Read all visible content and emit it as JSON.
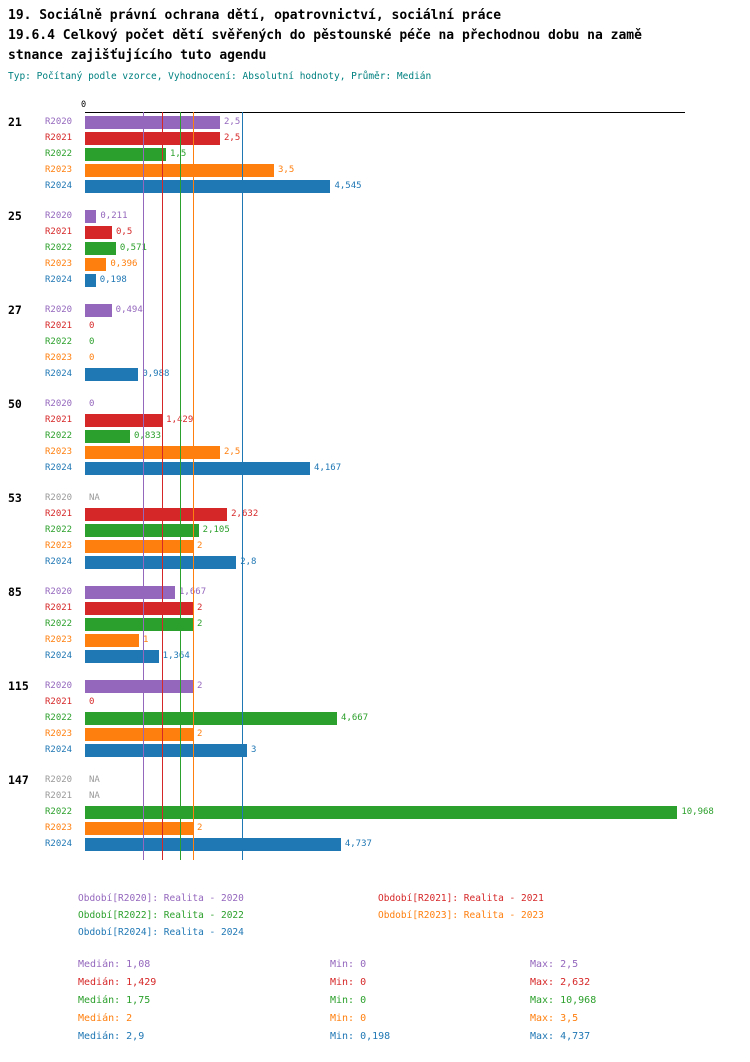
{
  "header": {
    "line1": "19. Sociálně právní ochrana dětí, opatrovnictví, sociální práce",
    "line2": "19.6.4 Celkový počet dětí svěřených do pěstounské péče na přechodnou dobu na zamě",
    "line3": "stnance zajišťujícího tuto agendu",
    "subtitle": "Typ: Počítaný podle vzorce, Vyhodnocení: Absolutní hodnoty, Průměr: Medián"
  },
  "chart_data": {
    "type": "bar",
    "orientation": "horizontal",
    "title": "19.6.4 Celkový počet dětí svěřených do pěstounské péče na přechodnou dobu na zaměstnance zajišťujícího tuto agendu",
    "axis": {
      "zero_label": "0",
      "xlim": [
        0,
        11.11
      ],
      "gridlines": "median-lines-per-series"
    },
    "na_color": "#999999",
    "na_display": "NA",
    "series": [
      {
        "id": "R2020",
        "name": "Realita - 2020",
        "color": "#9467bd",
        "median": 1.08
      },
      {
        "id": "R2021",
        "name": "Realita - 2021",
        "color": "#d62728",
        "median": 1.429
      },
      {
        "id": "R2022",
        "name": "Realita - 2022",
        "color": "#2ca02c",
        "median": 1.75
      },
      {
        "id": "R2023",
        "name": "Realita - 2023",
        "color": "#ff7f0e",
        "median": 2.0
      },
      {
        "id": "R2024",
        "name": "Realita - 2024",
        "color": "#1f77b4",
        "median": 2.9
      }
    ],
    "groups": [
      {
        "label": "21",
        "values": [
          2.5,
          2.5,
          1.5,
          3.5,
          4.545
        ],
        "displays": [
          "2,5",
          "2,5",
          "1,5",
          "3,5",
          "4,545"
        ]
      },
      {
        "label": "25",
        "values": [
          0.211,
          0.5,
          0.571,
          0.396,
          0.198
        ],
        "displays": [
          "0,211",
          "0,5",
          "0,571",
          "0,396",
          "0,198"
        ]
      },
      {
        "label": "27",
        "values": [
          0.494,
          0,
          0,
          0,
          0.988
        ],
        "displays": [
          "0,494",
          "0",
          "0",
          "0",
          "0,988"
        ]
      },
      {
        "label": "50",
        "values": [
          0,
          1.429,
          0.833,
          2.5,
          4.167
        ],
        "displays": [
          "0",
          "1,429",
          "0,833",
          "2,5",
          "4,167"
        ]
      },
      {
        "label": "53",
        "values": [
          null,
          2.632,
          2.105,
          2,
          2.8
        ],
        "displays": [
          "NA",
          "2,632",
          "2,105",
          "2",
          "2,8"
        ]
      },
      {
        "label": "85",
        "values": [
          1.667,
          2,
          2,
          1,
          1.364
        ],
        "displays": [
          "1,667",
          "2",
          "2",
          "1",
          "1,364"
        ]
      },
      {
        "label": "115",
        "values": [
          2,
          0,
          4.667,
          2,
          3
        ],
        "displays": [
          "2",
          "0",
          "4,667",
          "2",
          "3"
        ]
      },
      {
        "label": "147",
        "values": [
          null,
          null,
          10.968,
          2,
          4.737
        ],
        "displays": [
          "NA",
          "NA",
          "10,968",
          "2",
          "4,737"
        ]
      }
    ]
  },
  "legend": {
    "items": [
      {
        "key": "Období[R2020]",
        "value": "Realita - 2020"
      },
      {
        "key": "Období[R2021]",
        "value": "Realita - 2021"
      },
      {
        "key": "Období[R2022]",
        "value": "Realita - 2022"
      },
      {
        "key": "Období[R2023]",
        "value": "Realita - 2023"
      },
      {
        "key": "Období[R2024]",
        "value": "Realita - 2024"
      }
    ]
  },
  "stats": {
    "rows": [
      {
        "median": "Medián: 1,08",
        "min": "Min: 0",
        "max": "Max: 2,5"
      },
      {
        "median": "Medián: 1,429",
        "min": "Min: 0",
        "max": "Max: 2,632"
      },
      {
        "median": "Medián: 1,75",
        "min": "Min: 0",
        "max": "Max: 10,968"
      },
      {
        "median": "Medián: 2",
        "min": "Min: 0",
        "max": "Max: 3,5"
      },
      {
        "median": "Medián: 2,9",
        "min": "Min: 0,198",
        "max": "Max: 4,737"
      }
    ]
  }
}
